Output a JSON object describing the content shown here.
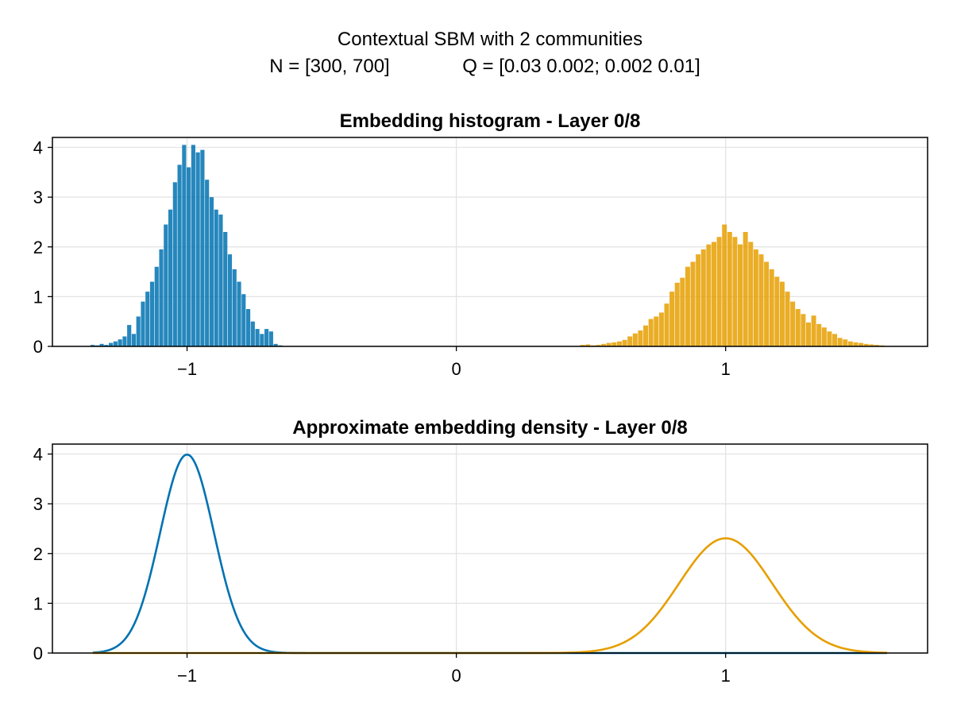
{
  "figure": {
    "title_line1": "Contextual SBM with 2 communities",
    "title_line2_left": "N = [300, 700]",
    "title_line2_right": "Q = [0.03 0.002; 0.002 0.01]"
  },
  "colors": {
    "blue": "#0072b2",
    "orange": "#e69f00"
  },
  "chart_data": [
    {
      "type": "bar",
      "title": "Embedding histogram - Layer 0/8",
      "xlim": [
        -1.5,
        1.75
      ],
      "ylim": [
        0,
        4.2
      ],
      "xticks": [
        -1,
        0,
        1
      ],
      "xtick_labels": [
        "−1",
        "0",
        "1"
      ],
      "yticks": [
        0,
        1,
        2,
        3,
        4
      ],
      "ytick_labels": [
        "0",
        "1",
        "2",
        "3",
        "4"
      ],
      "grid": true,
      "series": [
        {
          "color": "#0072b2",
          "bin_width": 0.017,
          "x": [
            -1.35,
            -1.333,
            -1.316,
            -1.299,
            -1.282,
            -1.265,
            -1.248,
            -1.231,
            -1.214,
            -1.197,
            -1.18,
            -1.163,
            -1.146,
            -1.129,
            -1.112,
            -1.095,
            -1.078,
            -1.061,
            -1.044,
            -1.027,
            -1.01,
            -0.993,
            -0.976,
            -0.959,
            -0.942,
            -0.925,
            -0.908,
            -0.891,
            -0.874,
            -0.857,
            -0.84,
            -0.823,
            -0.806,
            -0.789,
            -0.772,
            -0.755,
            -0.738,
            -0.721,
            -0.704,
            -0.687,
            -0.67,
            -0.653
          ],
          "values": [
            0.03,
            0.02,
            0.05,
            0.03,
            0.07,
            0.1,
            0.14,
            0.2,
            0.43,
            0.25,
            0.6,
            0.9,
            1.1,
            1.3,
            1.6,
            1.95,
            2.45,
            2.75,
            3.3,
            3.65,
            4.05,
            3.6,
            4.05,
            3.9,
            3.95,
            3.35,
            3.0,
            2.75,
            2.65,
            2.3,
            1.85,
            1.55,
            1.3,
            1.05,
            0.75,
            0.5,
            0.35,
            0.25,
            0.35,
            0.3,
            0.05,
            0.02
          ]
        },
        {
          "color": "#e69f00",
          "bin_width": 0.0195,
          "x": [
            0.47,
            0.4895,
            0.509,
            0.5285,
            0.548,
            0.5675,
            0.587,
            0.6065,
            0.626,
            0.6455,
            0.665,
            0.6845,
            0.704,
            0.7235,
            0.743,
            0.7625,
            0.782,
            0.8015,
            0.821,
            0.8405,
            0.86,
            0.8795,
            0.899,
            0.9185,
            0.938,
            0.9575,
            0.977,
            0.9965,
            1.016,
            1.0355,
            1.055,
            1.0745,
            1.094,
            1.1135,
            1.133,
            1.1525,
            1.172,
            1.1915,
            1.211,
            1.2305,
            1.25,
            1.2695,
            1.289,
            1.3085,
            1.328,
            1.3475,
            1.367,
            1.3865,
            1.406,
            1.4255,
            1.445,
            1.4645,
            1.484,
            1.5035,
            1.523,
            1.5425,
            1.562,
            1.5815
          ],
          "values": [
            0.03,
            0.04,
            0.02,
            0.03,
            0.05,
            0.07,
            0.08,
            0.1,
            0.13,
            0.2,
            0.26,
            0.32,
            0.42,
            0.55,
            0.6,
            0.68,
            0.86,
            1.1,
            1.28,
            1.38,
            1.6,
            1.7,
            1.85,
            1.95,
            2.05,
            2.1,
            2.2,
            2.45,
            2.3,
            2.2,
            2.05,
            2.3,
            2.1,
            1.95,
            1.85,
            1.7,
            1.55,
            1.4,
            1.3,
            1.1,
            0.9,
            0.75,
            0.65,
            0.48,
            0.62,
            0.45,
            0.38,
            0.3,
            0.25,
            0.17,
            0.14,
            0.1,
            0.08,
            0.07,
            0.05,
            0.04,
            0.03,
            0.02
          ]
        }
      ]
    },
    {
      "type": "line",
      "title": "Approximate embedding density - Layer 0/8",
      "xlim": [
        -1.5,
        1.75
      ],
      "ylim": [
        0,
        4.2
      ],
      "xticks": [
        -1,
        0,
        1
      ],
      "xtick_labels": [
        "−1",
        "0",
        "1"
      ],
      "yticks": [
        0,
        1,
        2,
        3,
        4
      ],
      "ytick_labels": [
        "0",
        "1",
        "2",
        "3",
        "4"
      ],
      "grid": true,
      "series": [
        {
          "color": "#0072b2",
          "distribution": "normal",
          "mean": -1.0,
          "std": 0.1,
          "x_range": [
            -1.35,
            1.6
          ]
        },
        {
          "color": "#e69f00",
          "distribution": "normal",
          "mean": 1.0,
          "std": 0.173,
          "x_range": [
            -1.35,
            1.6
          ]
        }
      ]
    }
  ]
}
